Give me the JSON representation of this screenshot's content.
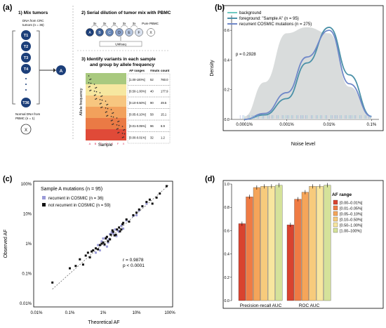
{
  "panels": {
    "a": {
      "label": "(a)",
      "step1_title": "1) Mix tumors",
      "crc_label_1": "DNA from CRC",
      "crc_label_2": "tumors (n = 36)",
      "tumors": [
        "T1",
        "T2",
        "T3",
        "T4",
        "T36"
      ],
      "mix_label": "A",
      "normal_label_1": "Normal DNA from",
      "normal_label_2": "PBMC (n = 1)",
      "normal_node": "X",
      "step2_title": "2) Serial dilution of tumor mix with PBMC",
      "dilution_steps": [
        "3x",
        "3x",
        "3x",
        "3x",
        "3x"
      ],
      "samples": [
        "A",
        "B",
        "C",
        "D",
        "E",
        "F",
        "X"
      ],
      "pure_pbmc": "Pure PBMC",
      "uniseq": "UMIseq",
      "step3_title_1": "3) Identify variants in each sample",
      "step3_title_2": "and group by allele frequency",
      "y_axis": "Allele frequency",
      "x_axis": "Sample",
      "table_headers": [
        "AF ranges",
        "#muts",
        "count"
      ],
      "table_rows": [
        [
          "[1.00-100%]",
          "52",
          "760.0"
        ],
        [
          "[0.50-1.00%]",
          "40",
          "177.9"
        ],
        [
          "[0.10-0.50%]",
          "90",
          "49.5"
        ],
        [
          "[0.05-0.10%]",
          "58",
          "15.1"
        ],
        [
          "[0.01-0.05%]",
          "96",
          "6.9"
        ],
        [
          "[0.00-0.01%]",
          "32",
          "1.2"
        ]
      ],
      "band_colors": [
        "#a9c97f",
        "#f6e7a0",
        "#f7c680",
        "#f2a15c",
        "#ea7a45",
        "#e04a38"
      ]
    },
    "b": {
      "label": "(b)",
      "legend": [
        {
          "text": "background",
          "color": "#6fc9c0"
        },
        {
          "text": "foreground: \"Sample A\" (n = 95)",
          "color": "#4b91a8"
        },
        {
          "text": "recurrent COSMIC mutations (n = 275)",
          "color": "#7088c8"
        }
      ],
      "pvalue": "p = 0.2928",
      "ylabel": "Density",
      "xlabel": "Noise level",
      "xticks": [
        "0.0001%",
        "0.001%",
        "0.01%",
        "0.1%"
      ]
    },
    "c": {
      "label": "(c)",
      "title": "Sample A mutations (n = 95)",
      "legend": [
        {
          "text": "recurrent in COSMIC (n = 36)",
          "color": "#9a9ad8"
        },
        {
          "text": "not recurrent in COSMIC (n = 59)",
          "color": "#111111"
        }
      ],
      "stats_r": "r = 0.9878",
      "stats_p": "p < 0.0001",
      "ylabel": "Observed AF",
      "xlabel": "Theoretical AF",
      "xticks": [
        "0.01%",
        "0.1%",
        "1%",
        "10%",
        "100%"
      ],
      "yticks": [
        "100%",
        "10%",
        "1%",
        "0.1%",
        "0.01%"
      ]
    },
    "d": {
      "label": "(d)",
      "legend_title": "AF range",
      "legend": [
        "[0.00–0.01%]",
        "[0.01–0.05%]",
        "[0.05–0.10%]",
        "[0.10–0.50%]",
        "[0.50–1.00%]",
        "[1.00–100%]"
      ],
      "colors": [
        "#d9432f",
        "#ef7b44",
        "#f5a55a",
        "#f7cb7c",
        "#f8e69f",
        "#d5e29a"
      ],
      "yticks": [
        "0.0",
        "0.2",
        "0.4",
        "0.6",
        "0.8",
        "1.0"
      ],
      "groups": [
        "Precision-recall AUC",
        "ROC AUC"
      ]
    }
  },
  "chart_data": [
    {
      "type": "area",
      "title": "",
      "xlabel": "Noise level",
      "ylabel": "Density",
      "x_scale": "log",
      "xlim": [
        "0.00005%",
        "0.15%"
      ],
      "series": [
        {
          "name": "background",
          "x": [
            "0.0001%",
            "0.0003%",
            "0.001%",
            "0.003%",
            "0.01%",
            "0.03%",
            "0.1%"
          ],
          "values": [
            0.02,
            0.25,
            0.58,
            0.62,
            0.58,
            0.22,
            0.02
          ]
        },
        {
          "name": "foreground: \"Sample A\" (n = 95)",
          "x": [
            "0.0001%",
            "0.0003%",
            "0.001%",
            "0.003%",
            "0.01%",
            "0.03%",
            "0.1%"
          ],
          "values": [
            0.0,
            0.03,
            0.14,
            0.38,
            0.62,
            0.3,
            0.02
          ]
        },
        {
          "name": "recurrent COSMIC mutations (n = 275)",
          "x": [
            "0.0001%",
            "0.0003%",
            "0.001%",
            "0.003%",
            "0.01%",
            "0.03%",
            "0.1%"
          ],
          "values": [
            0.0,
            0.04,
            0.18,
            0.42,
            0.6,
            0.24,
            0.02
          ]
        }
      ]
    },
    {
      "type": "scatter",
      "title": "Sample A mutations (n = 95)",
      "xlabel": "Theoretical AF",
      "ylabel": "Observed AF",
      "x_scale": "log",
      "y_scale": "log",
      "series": [
        {
          "name": "recurrent in COSMIC (n = 36)",
          "x": [
            0.9,
            1.1,
            1.2,
            1.5,
            2.0,
            2.3,
            3.0,
            3.5,
            1.3,
            1.0,
            0.8,
            0.6,
            1.6,
            2.5,
            4.0,
            5.0,
            8.0,
            10,
            12,
            15,
            20,
            1.4,
            1.8,
            0.7,
            2.8
          ],
          "values": [
            1.2,
            0.9,
            1.6,
            1.4,
            2.2,
            3.0,
            2.5,
            4.0,
            0.8,
            1.5,
            0.6,
            0.5,
            2.1,
            1.8,
            3.2,
            6.0,
            8.5,
            9.0,
            13,
            18,
            22,
            1.1,
            2.4,
            0.9,
            2.7
          ]
        },
        {
          "name": "not recurrent in COSMIC (n = 59)",
          "x": [
            0.03,
            0.1,
            0.15,
            0.2,
            0.3,
            0.4,
            0.5,
            0.6,
            0.8,
            1.0,
            1.2,
            1.4,
            1.7,
            2.0,
            2.4,
            3.0,
            3.5,
            4.0,
            5.0,
            6.0,
            8.0,
            10,
            12,
            15,
            20,
            25,
            30,
            40,
            50,
            80,
            0.25,
            0.35,
            0.45,
            0.7,
            0.9,
            1.1,
            1.3,
            1.6,
            1.9,
            2.2,
            2.6,
            3.2,
            3.8
          ],
          "values": [
            0.05,
            0.15,
            0.18,
            0.3,
            0.4,
            0.35,
            0.6,
            0.7,
            0.9,
            1.1,
            1.5,
            1.2,
            2.0,
            2.5,
            2.0,
            3.5,
            3.0,
            5.0,
            6.5,
            5.5,
            9.0,
            11,
            14,
            18,
            25,
            30,
            22,
            35,
            48,
            85,
            0.2,
            0.5,
            0.55,
            0.65,
            1.0,
            0.95,
            1.7,
            1.4,
            2.8,
            1.9,
            3.0,
            2.6,
            4.5
          ]
        }
      ]
    },
    {
      "type": "bar",
      "xlabel": "",
      "ylabel": "",
      "categories": [
        "Precision-recall AUC",
        "ROC AUC"
      ],
      "ylim": [
        0,
        1
      ],
      "series": [
        {
          "name": "[0.00–0.01%]",
          "values": [
            0.66,
            0.65
          ]
        },
        {
          "name": "[0.01–0.05%]",
          "values": [
            0.89,
            0.87
          ]
        },
        {
          "name": "[0.05–0.10%]",
          "values": [
            0.97,
            0.93
          ]
        },
        {
          "name": "[0.10–0.50%]",
          "values": [
            0.98,
            0.98
          ]
        },
        {
          "name": "[0.50–1.00%]",
          "values": [
            0.98,
            0.98
          ]
        },
        {
          "name": "[1.00–100%]",
          "values": [
            0.99,
            0.99
          ]
        }
      ]
    }
  ]
}
